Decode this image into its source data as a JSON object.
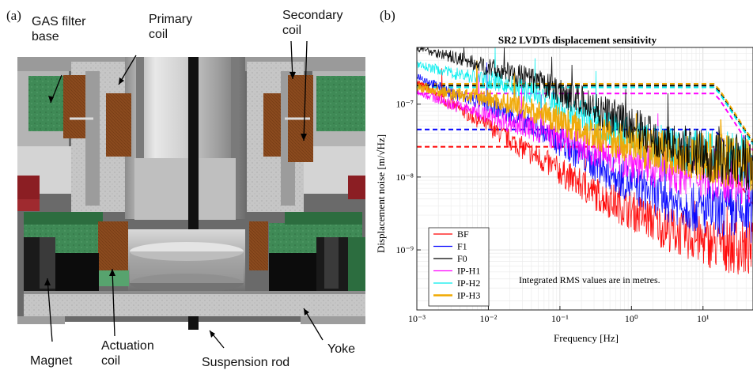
{
  "figure": {
    "panel_a_label": "(a)",
    "panel_b_label": "(b)",
    "callouts": [
      {
        "id": "gas-filter-base",
        "text": "GAS filter\nbase"
      },
      {
        "id": "primary-coil",
        "text": "Primary\ncoil"
      },
      {
        "id": "secondary-coil",
        "text": "Secondary\ncoil"
      },
      {
        "id": "magnet",
        "text": "Magnet"
      },
      {
        "id": "actuation-coil",
        "text": "Actuation\ncoil"
      },
      {
        "id": "suspension-rod",
        "text": "Suspension rod"
      },
      {
        "id": "yoke",
        "text": "Yoke"
      }
    ]
  },
  "chart_data": {
    "type": "line",
    "title": "SR2 LVDTs displacement sensitivity",
    "xlabel": "Frequency [Hz]",
    "ylabel": "Displacement noise [m/√Hz]",
    "x_scale": "log",
    "y_scale": "log",
    "xlim": [
      0.001,
      50
    ],
    "ylim": [
      1.5e-10,
      6e-07
    ],
    "x_ticks": [
      "10⁻³",
      "10⁻²",
      "10⁻¹",
      "10⁰",
      "10¹"
    ],
    "y_ticks": [
      "10⁻⁹",
      "10⁻⁸",
      "10⁻⁷"
    ],
    "grid": true,
    "legend_position": "bottom-left",
    "annotation": "Integrated RMS values are in metres.",
    "series": [
      {
        "name": "BF",
        "color": "#ff0000",
        "points": [
          [
            0.001,
            2e-07
          ],
          [
            0.003,
            1e-07
          ],
          [
            0.01,
            5e-08
          ],
          [
            0.03,
            2.5e-08
          ],
          [
            0.1,
            1.2e-08
          ],
          [
            0.3,
            6e-09
          ],
          [
            1,
            3.5e-09
          ],
          [
            3,
            2e-09
          ],
          [
            10,
            1.3e-09
          ],
          [
            50,
            1e-09
          ]
        ],
        "rms": 2.6e-08
      },
      {
        "name": "F1",
        "color": "#0000ff",
        "points": [
          [
            0.001,
            2.5e-07
          ],
          [
            0.003,
            1.4e-07
          ],
          [
            0.01,
            1e-07
          ],
          [
            0.03,
            6e-08
          ],
          [
            0.1,
            3e-08
          ],
          [
            0.3,
            1.5e-08
          ],
          [
            1,
            8e-09
          ],
          [
            3,
            5e-09
          ],
          [
            10,
            3.5e-09
          ],
          [
            50,
            3e-09
          ]
        ],
        "rms": 4.5e-08
      },
      {
        "name": "F0",
        "color": "#000000",
        "points": [
          [
            0.001,
            6e-07
          ],
          [
            0.003,
            4.5e-07
          ],
          [
            0.01,
            3.2e-07
          ],
          [
            0.03,
            2.4e-07
          ],
          [
            0.1,
            1.5e-07
          ],
          [
            0.3,
            9e-08
          ],
          [
            1,
            5e-08
          ],
          [
            3,
            3e-08
          ],
          [
            10,
            2e-08
          ],
          [
            50,
            1.5e-08
          ]
        ],
        "rms": 1.8e-07
      },
      {
        "name": "IP-H1",
        "color": "#ff00ff",
        "points": [
          [
            0.001,
            1.5e-07
          ],
          [
            0.003,
            1e-07
          ],
          [
            0.01,
            7e-08
          ],
          [
            0.03,
            5e-08
          ],
          [
            0.1,
            3.5e-08
          ],
          [
            0.3,
            2.2e-08
          ],
          [
            1,
            1.6e-08
          ],
          [
            3,
            1.3e-08
          ],
          [
            10,
            1.1e-08
          ],
          [
            50,
            1e-08
          ]
        ],
        "rms": 1.4e-07
      },
      {
        "name": "IP-H2",
        "color": "#00eeee",
        "points": [
          [
            0.001,
            3.5e-07
          ],
          [
            0.003,
            2.7e-07
          ],
          [
            0.01,
            2.2e-07
          ],
          [
            0.03,
            1.6e-07
          ],
          [
            0.1,
            1e-07
          ],
          [
            0.3,
            6e-08
          ],
          [
            1,
            3.5e-08
          ],
          [
            3,
            2.5e-08
          ],
          [
            10,
            2e-08
          ],
          [
            50,
            1.8e-08
          ]
        ],
        "rms": 1.7e-07
      },
      {
        "name": "IP-H3",
        "color": "#f0a800",
        "points": [
          [
            0.001,
            1.7e-07
          ],
          [
            0.003,
            1.4e-07
          ],
          [
            0.01,
            1.2e-07
          ],
          [
            0.03,
            9e-08
          ],
          [
            0.1,
            6e-08
          ],
          [
            0.3,
            4e-08
          ],
          [
            1,
            2.8e-08
          ],
          [
            3,
            2.2e-08
          ],
          [
            10,
            1.8e-08
          ],
          [
            50,
            1.6e-08
          ]
        ],
        "rms": 1.9e-07
      }
    ]
  }
}
